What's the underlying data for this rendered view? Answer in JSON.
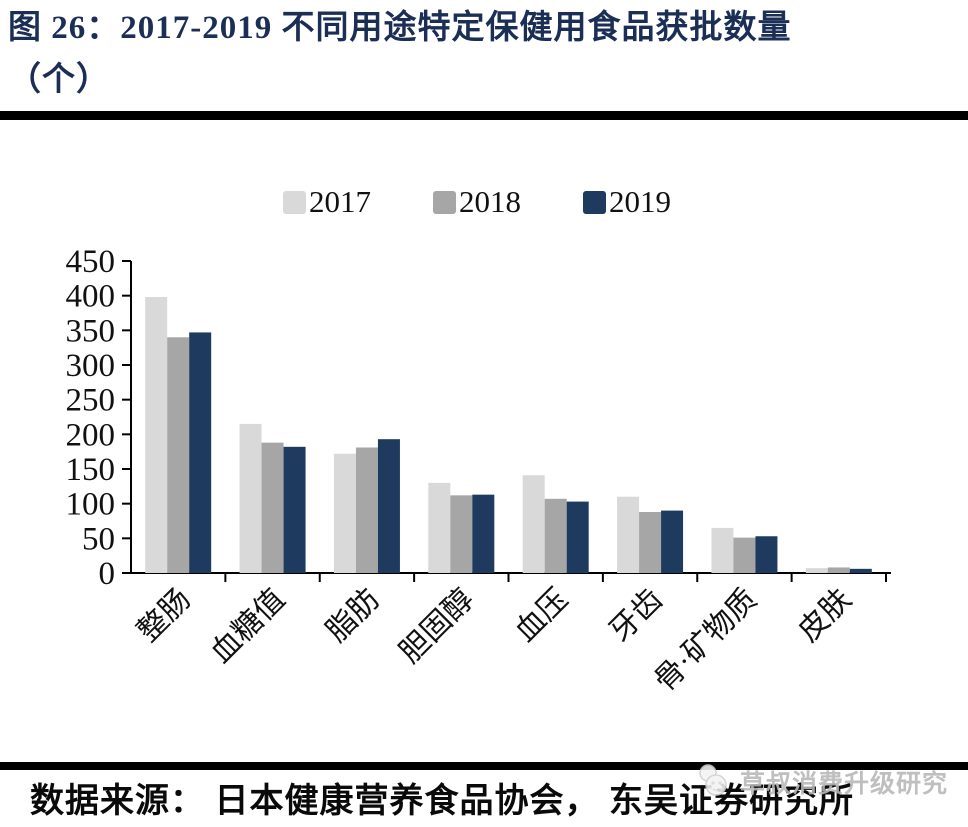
{
  "figure": {
    "title_line1": "图 26：2017-2019 不同用途特定保健用食品获批数量",
    "title_line2": "（个）",
    "source": "数据来源： 日本健康营养食品协会， 东吴证券研究所",
    "watermark": "草叔消费升级研究"
  },
  "colors": {
    "title": "#1b2e55",
    "axis": "#000000",
    "tick_label": "#111111",
    "watermark": "#b7b7b7",
    "divider": "#000000"
  },
  "chart_data": {
    "type": "bar",
    "title": "2017-2019 不同用途特定保健用食品获批数量（个）",
    "unit": "个",
    "categories": [
      "整肠",
      "血糖值",
      "脂肪",
      "胆固醇",
      "血压",
      "牙齿",
      "骨·矿物质",
      "皮肤"
    ],
    "series": [
      {
        "name": "2017",
        "color": "#d9d9d9",
        "values": [
          398,
          215,
          172,
          130,
          141,
          110,
          65,
          7
        ]
      },
      {
        "name": "2018",
        "color": "#a6a6a6",
        "values": [
          340,
          188,
          181,
          112,
          107,
          88,
          51,
          8
        ]
      },
      {
        "name": "2019",
        "color": "#1f3a5f",
        "values": [
          347,
          182,
          193,
          113,
          103,
          90,
          53,
          6
        ]
      }
    ],
    "ylim": [
      0,
      450
    ],
    "ytick_step": 50,
    "grid": false,
    "legend_position": "top",
    "xlabel": "",
    "ylabel": ""
  }
}
